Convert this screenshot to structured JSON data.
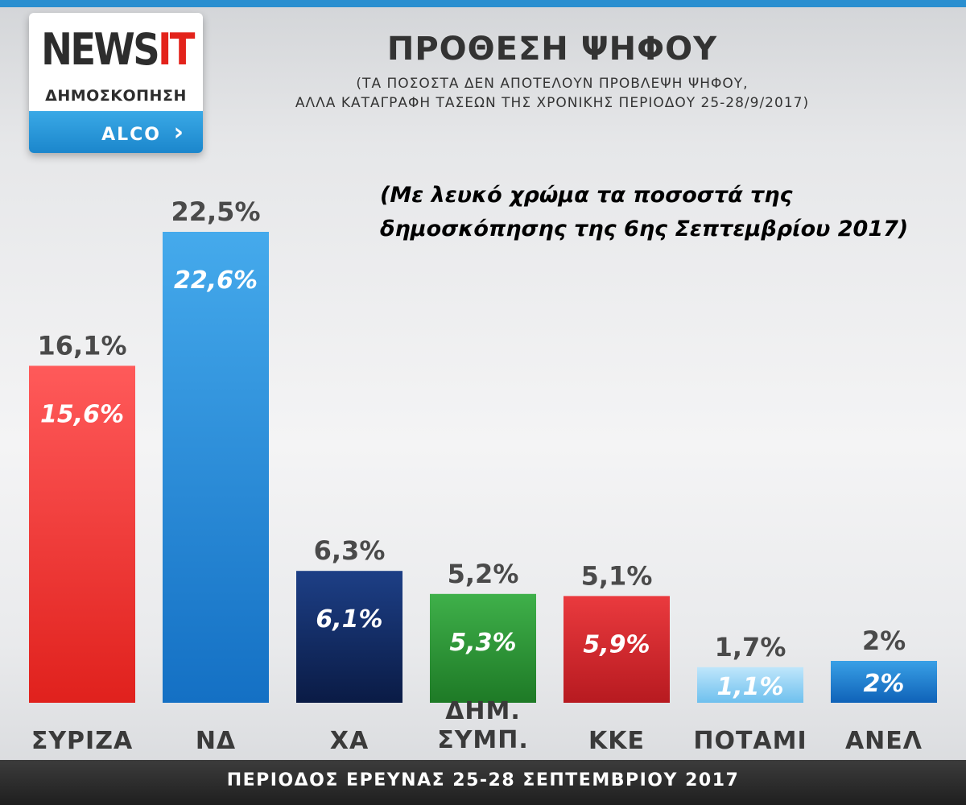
{
  "header": {
    "logo_brand_main": "NEWS",
    "logo_brand_accent": "IT",
    "logo_subtitle": "ΔΗΜΟΣΚΟΠΗΣΗ",
    "logo_partner": "ALCO",
    "title": "ΠΡΟΘΕΣΗ ΨΗΦΟΥ",
    "subtitle_line1": "(ΤΑ ΠΟΣΟΣΤΑ ΔΕΝ ΑΠΟΤΕΛΟΥΝ ΠΡΟΒΛΕΨΗ ΨΗΦΟΥ,",
    "subtitle_line2": "ΑΛΛΑ ΚΑΤΑΓΡΑΦΗ ΤΑΣΕΩΝ ΤΗΣ ΧΡΟΝΙΚΗΣ ΠΕΡΙΟΔΟΥ 25-28/9/2017)"
  },
  "note": {
    "line1": "(Με λευκό χρώμα τα ποσοστά της",
    "line2": "δημοσκόπησης της 6ης Σεπτεμβρίου 2017)"
  },
  "footer": {
    "text": "ΠΕΡΙΟΔΟΣ ΕΡΕΥΝΑΣ 25-28 ΣΕΠΤΕΜΒΡΙΟΥ 2017"
  },
  "chart_data": {
    "type": "bar",
    "title": "ΠΡΟΘΕΣΗ ΨΗΦΟΥ",
    "categories": [
      [
        "ΣΥΡΙΖΑ"
      ],
      [
        "ΝΔ"
      ],
      [
        "ΧΑ"
      ],
      [
        "ΔΗΜ.",
        "ΣΥΜΠ."
      ],
      [
        "ΚΚΕ"
      ],
      [
        "ΠΟΤΑΜΙ"
      ],
      [
        "ΑΝΕΛ"
      ]
    ],
    "values": [
      16.1,
      22.5,
      6.3,
      5.2,
      5.1,
      1.7,
      2
    ],
    "value_labels": [
      "16,1%",
      "22,5%",
      "6,3%",
      "5,2%",
      "5,1%",
      "1,7%",
      "2%"
    ],
    "previous_values": [
      15.6,
      22.6,
      6.1,
      5.3,
      5.9,
      1.1,
      2
    ],
    "previous_labels": [
      "15,6%",
      "22,6%",
      "6,1%",
      "5,3%",
      "5,9%",
      "1,1%",
      "2%"
    ],
    "colors": [
      [
        "#ff5a5a",
        "#e0211d"
      ],
      [
        "#45aaec",
        "#1470c4"
      ],
      [
        "#1d3f86",
        "#0a1b45"
      ],
      [
        "#3fb04a",
        "#1e7a26"
      ],
      [
        "#ea3a3e",
        "#b71a20"
      ],
      [
        "#bfe6fb",
        "#6ec0ee"
      ],
      [
        "#39a0e6",
        "#0f62b8"
      ]
    ],
    "ylim": [
      0,
      25
    ],
    "grid": false,
    "legend": "none"
  }
}
